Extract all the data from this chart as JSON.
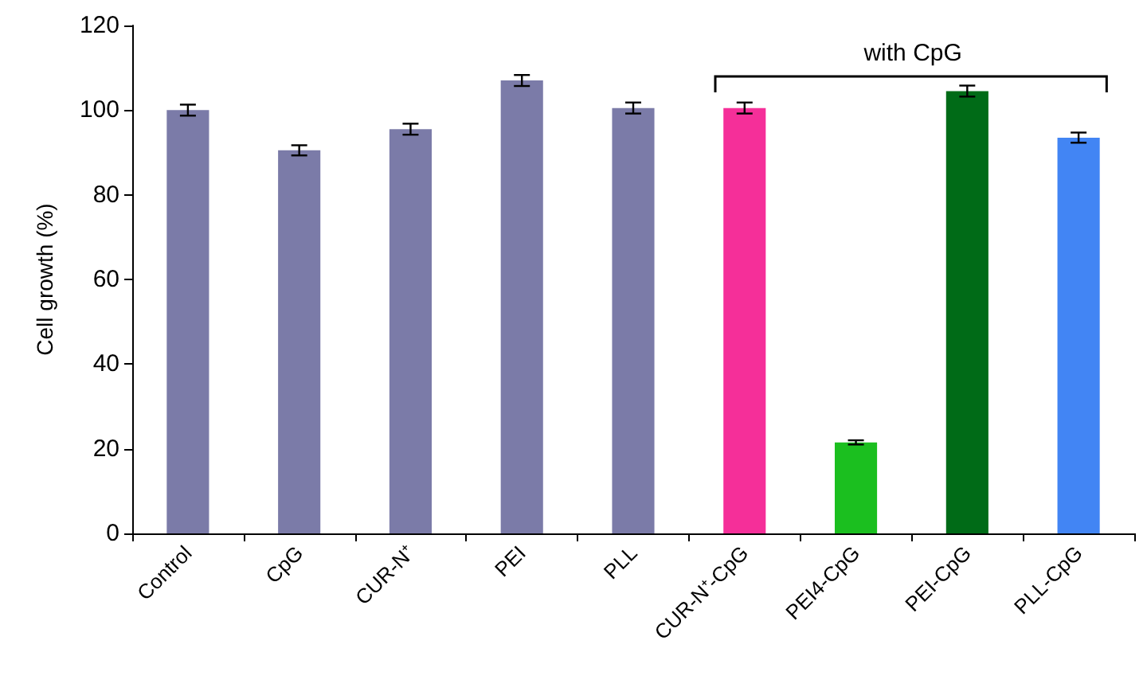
{
  "chart_data": {
    "type": "bar",
    "ylabel": "Cell growth (%)",
    "categories": [
      "Control",
      "CpG",
      "CUR-N⁺",
      "PEI",
      "PLL",
      "CUR-N⁺-CpG",
      "PEI4-CpG",
      "PEI-CpG",
      "PLL-CpG"
    ],
    "values": [
      100,
      90.5,
      95.5,
      107,
      100.5,
      100.5,
      21.5,
      104.5,
      93.5
    ],
    "errors": [
      1.3,
      1.2,
      1.3,
      1.3,
      1.3,
      1.3,
      0.5,
      1.3,
      1.2
    ],
    "colors": [
      "#7b7ba8",
      "#7b7ba8",
      "#7b7ba8",
      "#7b7ba8",
      "#7b7ba8",
      "#f52f99",
      "#1bbf1f",
      "#006b17",
      "#4285f4"
    ],
    "ylim": [
      0,
      120
    ],
    "yticks": [
      0,
      20,
      40,
      60,
      80,
      100,
      120
    ],
    "grid": false,
    "annotations": [
      "with CpG"
    ]
  }
}
